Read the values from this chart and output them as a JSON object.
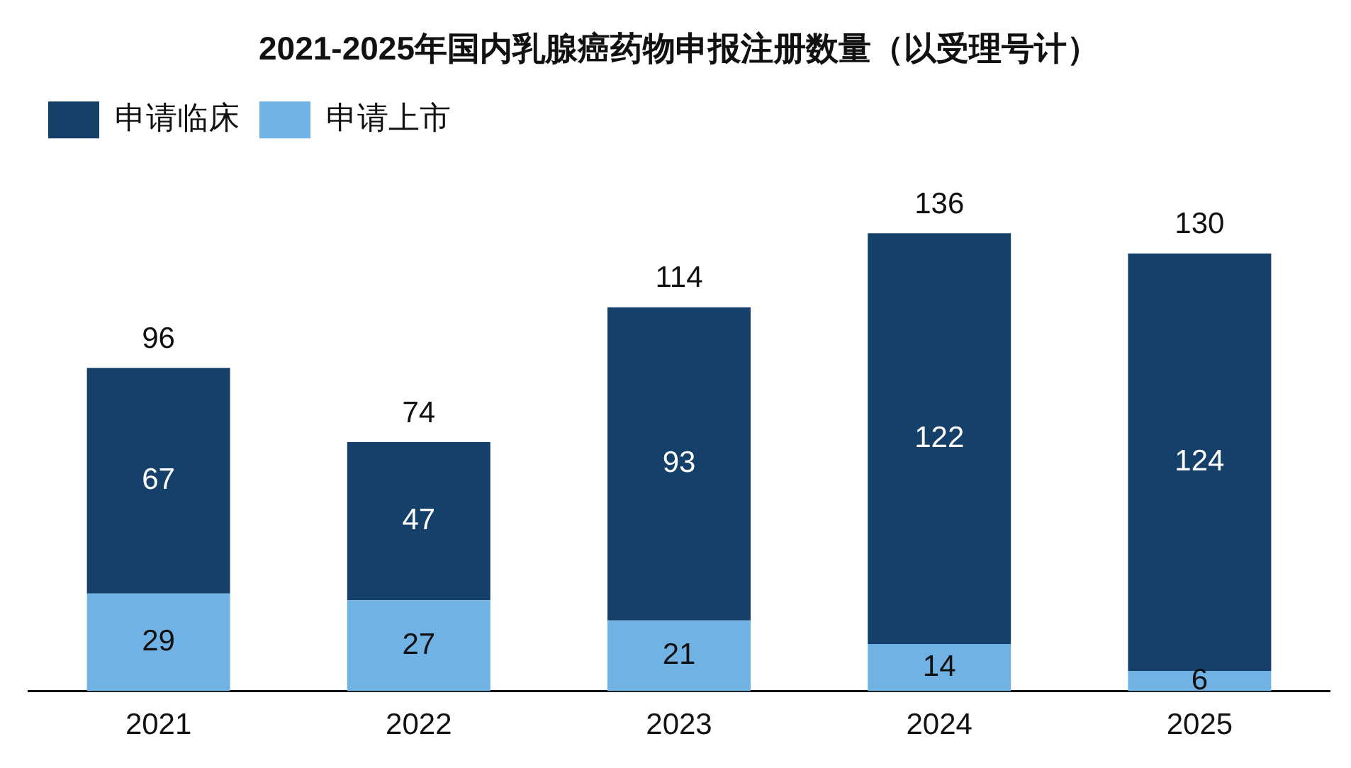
{
  "chart_data": {
    "type": "bar",
    "title": "2021-2025年国内乳腺癌药物申报注册数量（以受理号计）",
    "categories": [
      "2021",
      "2022",
      "2023",
      "2024",
      "2025"
    ],
    "stacked": true,
    "data_labels": true,
    "legend": "top left",
    "grid": false,
    "tick_labels": "x",
    "series": [
      {
        "name": "申请上市",
        "color": "#70b2e4",
        "values": [
          29,
          27,
          21,
          14,
          6
        ]
      },
      {
        "name": "申请临床",
        "color": "#15406a",
        "values": [
          67,
          47,
          93,
          122,
          124
        ]
      }
    ],
    "totals": [
      "96",
      "74",
      "114",
      "136",
      "130"
    ]
  }
}
